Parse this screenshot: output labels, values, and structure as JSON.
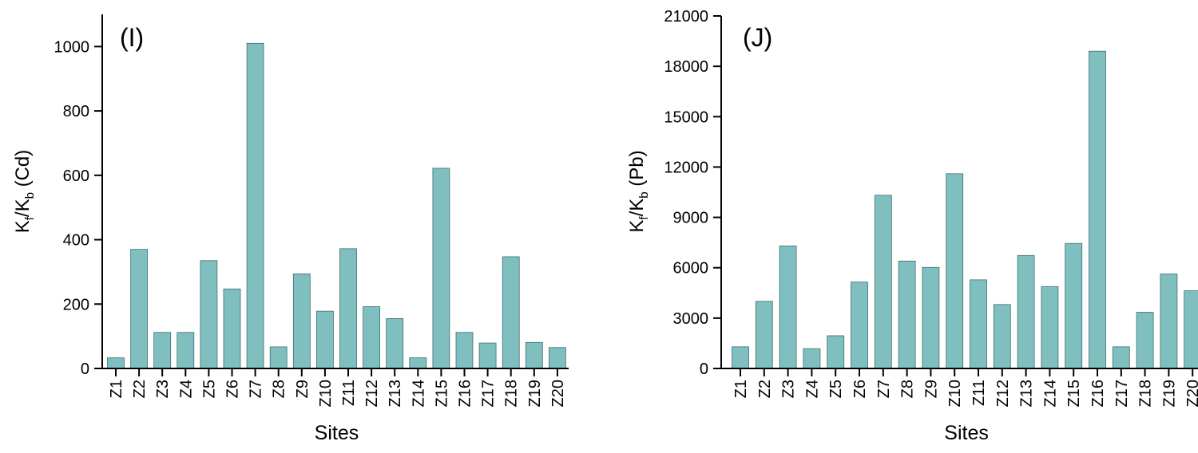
{
  "chart_data": [
    {
      "type": "bar",
      "panel_label": "(I)",
      "xlabel": "Sites",
      "ylabel": {
        "main": "K",
        "sub1": "f",
        "mid": "/K",
        "sub2": "b",
        "tail": " (Cd)"
      },
      "categories": [
        "Z1",
        "Z2",
        "Z3",
        "Z4",
        "Z5",
        "Z6",
        "Z7",
        "Z8",
        "Z9",
        "Z10",
        "Z11",
        "Z12",
        "Z13",
        "Z14",
        "Z15",
        "Z16",
        "Z17",
        "Z18",
        "Z19",
        "Z20"
      ],
      "values": [
        33,
        370,
        112,
        112,
        335,
        247,
        1010,
        67,
        294,
        178,
        372,
        192,
        155,
        33,
        622,
        112,
        79,
        347,
        81,
        65
      ],
      "yticks": [
        0,
        200,
        400,
        600,
        800,
        1000
      ],
      "ylim": [
        0,
        1100
      ],
      "grid": false,
      "bar_color": "#80bfbf",
      "bar_edge": "#3f6f6f"
    },
    {
      "type": "bar",
      "panel_label": "(J)",
      "xlabel": "Sites",
      "ylabel": {
        "main": "K",
        "sub1": "f",
        "mid": "/K",
        "sub2": "b",
        "tail": " (Pb)"
      },
      "categories": [
        "Z1",
        "Z2",
        "Z3",
        "Z4",
        "Z5",
        "Z6",
        "Z7",
        "Z8",
        "Z9",
        "Z10",
        "Z11",
        "Z12",
        "Z13",
        "Z14",
        "Z15",
        "Z16",
        "Z17",
        "Z18",
        "Z19",
        "Z20"
      ],
      "values": [
        1290,
        4000,
        7300,
        1180,
        1950,
        5150,
        10320,
        6400,
        6020,
        11600,
        5280,
        3810,
        6730,
        4880,
        7450,
        18900,
        1290,
        3350,
        5630,
        4630
      ],
      "yticks": [
        0,
        3000,
        6000,
        9000,
        12000,
        15000,
        18000,
        21000
      ],
      "ylim": [
        0,
        21000
      ],
      "grid": false,
      "bar_color": "#80bfbf",
      "bar_edge": "#3f6f6f"
    }
  ]
}
